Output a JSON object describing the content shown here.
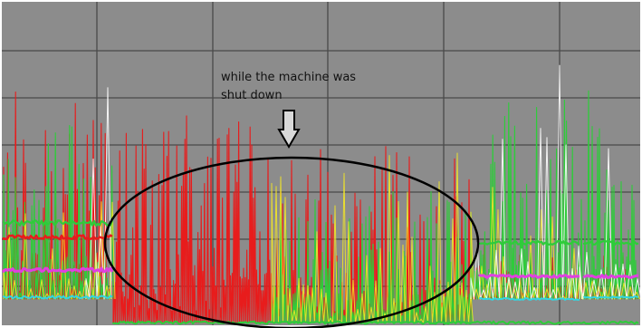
{
  "chart_data": {
    "type": "line",
    "title": "",
    "xlabel": "",
    "ylabel": "",
    "grid": true,
    "legend": "none",
    "background": "#8c8c8c",
    "grid_color": "#4a4a4a",
    "series": [
      {
        "color": "#e81c1c",
        "style": "dense spikes"
      },
      {
        "color": "#2ecc3a",
        "style": "dense spikes"
      },
      {
        "color": "#f2e627",
        "style": "sparse spikes"
      },
      {
        "color": "#ffffff",
        "style": "sparse spikes"
      },
      {
        "color": "#e040e0",
        "style": "baseline band"
      },
      {
        "color": "#33d6e0",
        "style": "baseline band"
      }
    ],
    "annotations": [
      {
        "id": "shutdown-note",
        "text": "while the machine was\nshut down",
        "marker": "down-arrow"
      }
    ],
    "highlight": {
      "shape": "ellipse",
      "color": "#000000"
    }
  }
}
